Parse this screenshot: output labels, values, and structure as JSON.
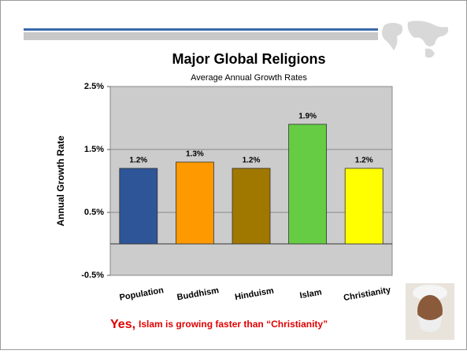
{
  "chart_data": {
    "type": "bar",
    "title": "Major Global Religions",
    "subtitle": "Average Annual Growth Rates",
    "y_label": "Annual Growth Rate",
    "categories": [
      "Population",
      "Buddhism",
      "Hinduism",
      "Islam",
      "Christianity"
    ],
    "values": [
      1.2,
      1.3,
      1.2,
      1.9,
      1.2
    ],
    "value_labels": [
      "1.2%",
      "1.3%",
      "1.2%",
      "1.9%",
      "1.2%"
    ],
    "colors": [
      "#2e5597",
      "#ff9900",
      "#a07800",
      "#66cc44",
      "#ffff00"
    ],
    "ylim": [
      -0.5,
      2.5
    ],
    "yticks": [
      {
        "value": -0.5,
        "label": "-0.5%"
      },
      {
        "value": 0.5,
        "label": "0.5%"
      },
      {
        "value": 1.5,
        "label": "1.5%"
      },
      {
        "value": 2.5,
        "label": "2.5%"
      }
    ],
    "grid": true
  },
  "caption": {
    "emphasis": "Yes,",
    "text": "Islam is growing faster than “Christianity”"
  }
}
